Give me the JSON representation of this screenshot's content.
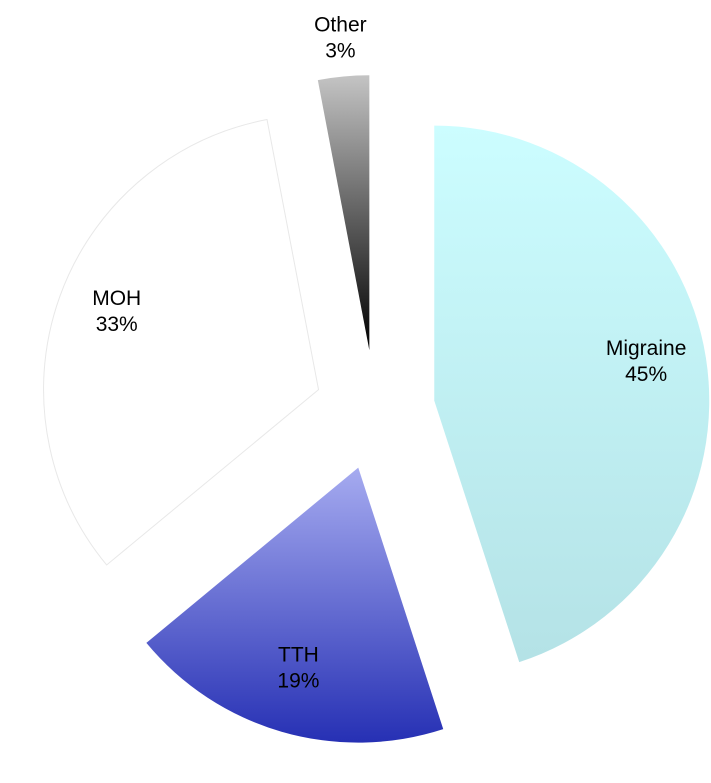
{
  "chart_data": {
    "type": "pie",
    "categories": [
      "Migraine",
      "TTH",
      "MOH",
      "Other"
    ],
    "values": [
      45,
      19,
      33,
      3
    ],
    "value_labels": [
      "45%",
      "19%",
      "33%",
      "3%"
    ],
    "colors": [
      [
        "#ccfdff",
        "#b4e2e6"
      ],
      [
        "#a6abf0",
        "#2630b4"
      ],
      [
        "#ffffff",
        "#ffffff"
      ],
      [
        "#c4c4c4",
        "#000000"
      ]
    ]
  }
}
